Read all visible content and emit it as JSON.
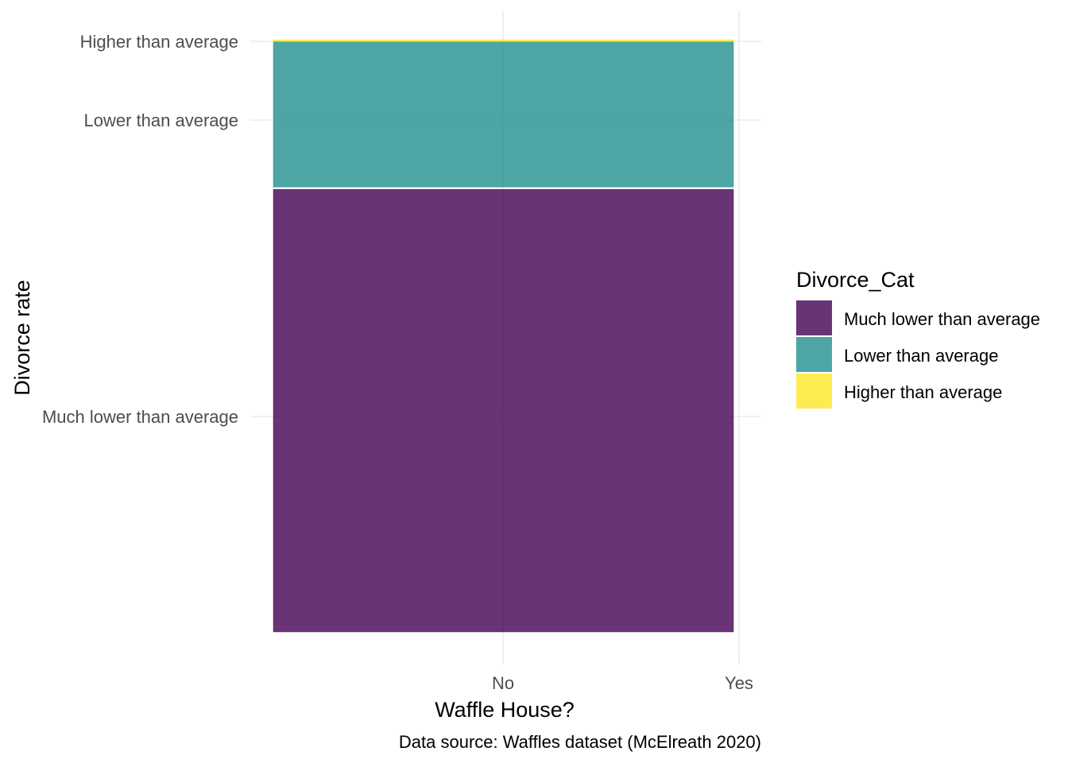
{
  "chart_data": {
    "type": "bar",
    "subtype": "mosaic",
    "x": {
      "label": "Waffle House?",
      "tick_labels": [
        "No",
        "Yes"
      ]
    },
    "y": {
      "label": "Divorce rate",
      "tick_labels": [
        "Much lower than average",
        "Lower than average",
        "Higher than average"
      ]
    },
    "categories": [
      "Yes"
    ],
    "series": [
      {
        "name": "Much lower than average",
        "values": [
          0.737
        ],
        "color": "#440154"
      },
      {
        "name": "Lower than average",
        "values": [
          0.245
        ],
        "color": "#21908C"
      },
      {
        "name": "Higher than average",
        "values": [
          0.003
        ],
        "color": "#FDE725"
      }
    ],
    "legend": {
      "title": "Divorce_Cat",
      "position": "right",
      "entries": [
        "Much lower than average",
        "Lower than average",
        "Higher than average"
      ]
    },
    "caption": "Data source: Waffles dataset (McElreath 2020)",
    "fill_alpha": 0.8,
    "grid": true
  }
}
